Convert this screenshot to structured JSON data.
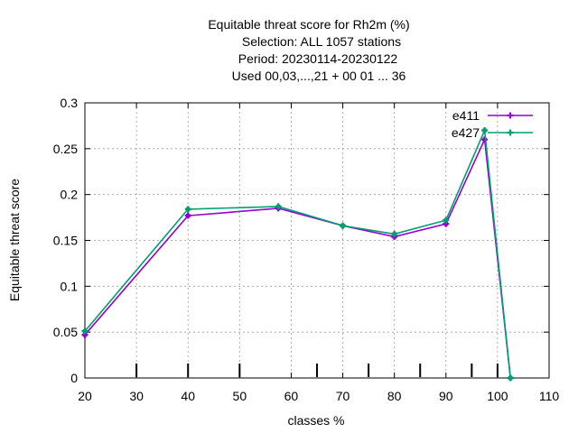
{
  "chart_data": {
    "type": "line",
    "title_lines": [
      "Equitable threat score  for Rh2m (%)",
      "Selection: ALL   1057 stations",
      "Period: 20230114-20230122",
      "Used  00,03,...,21  + 00 01 ... 36"
    ],
    "xlabel": "classes %",
    "ylabel": "Equitable threat score",
    "xlim": [
      20,
      110
    ],
    "ylim": [
      0,
      0.3
    ],
    "xticks": [
      20,
      30,
      40,
      50,
      60,
      70,
      80,
      90,
      100,
      110
    ],
    "yticks": [
      0,
      0.05,
      0.1,
      0.15,
      0.2,
      0.25,
      0.3
    ],
    "ytick_labels": [
      "0",
      "0.05",
      "0.1",
      "0.15",
      "0.2",
      "0.25",
      "0.3"
    ],
    "grid": true,
    "legend_position": "top-right",
    "class_markers": [
      30,
      40,
      50,
      65,
      75,
      85,
      95,
      100
    ],
    "series": [
      {
        "name": "e411",
        "color": "#9400d3",
        "x": [
          20,
          40,
          57.5,
          70,
          80,
          90,
          97.5,
          102.5
        ],
        "y": [
          0.047,
          0.177,
          0.185,
          0.166,
          0.154,
          0.168,
          0.26,
          0.0
        ]
      },
      {
        "name": "e427",
        "color": "#009e73",
        "x": [
          20,
          40,
          57.5,
          70,
          80,
          90,
          97.5,
          102.5
        ],
        "y": [
          0.051,
          0.184,
          0.187,
          0.166,
          0.157,
          0.172,
          0.27,
          0.0
        ]
      }
    ]
  }
}
